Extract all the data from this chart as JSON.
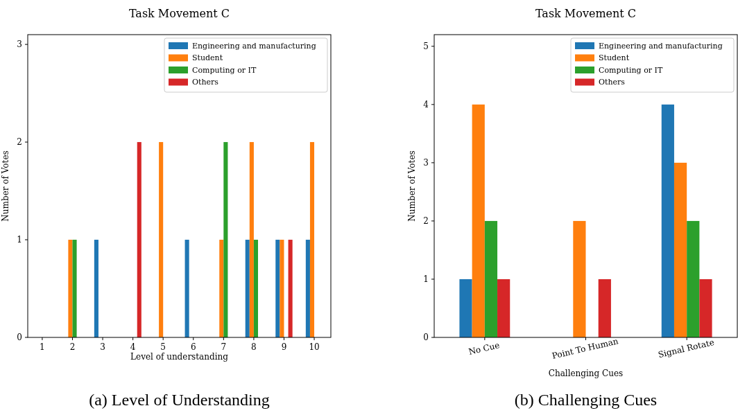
{
  "chart_data": [
    {
      "type": "bar",
      "title": "Task Movement C",
      "xlabel": "Level of understanding",
      "ylabel": "Number of Votes",
      "x": [
        1,
        2,
        3,
        4,
        5,
        6,
        7,
        8,
        9,
        10
      ],
      "xlim": [
        0.52,
        10.55
      ],
      "xticks": [
        1,
        2,
        3,
        4,
        5,
        6,
        7,
        8,
        9,
        10
      ],
      "ylim": [
        0,
        3.1
      ],
      "yticks": [
        0,
        1,
        2,
        3
      ],
      "legend": "top right",
      "annotations": [
        "(a) Level of Understanding"
      ],
      "series": [
        {
          "name": "Engineering and manufacturing",
          "color": "#1f77b4",
          "values": [
            0,
            0,
            1,
            0,
            0,
            1,
            0,
            1,
            1,
            1
          ]
        },
        {
          "name": "Student",
          "color": "#ff7f0e",
          "values": [
            0,
            1,
            0,
            0,
            2,
            0,
            1,
            2,
            1,
            2
          ]
        },
        {
          "name": "Computing or IT",
          "color": "#2ca02c",
          "values": [
            0,
            1,
            0,
            0,
            0,
            0,
            2,
            1,
            0,
            0
          ]
        },
        {
          "name": "Others",
          "color": "#d62728",
          "values": [
            0,
            0,
            0,
            2,
            0,
            0,
            0,
            0,
            1,
            0
          ]
        }
      ]
    },
    {
      "type": "bar",
      "title": "Task Movement C",
      "xlabel": "Challenging Cues",
      "ylabel": "Number of Votes",
      "categories": [
        "No Cue",
        "Point To Human",
        "Signal Rotate"
      ],
      "ylim": [
        0,
        5.2
      ],
      "yticks": [
        0,
        1,
        2,
        3,
        4,
        5
      ],
      "legend": "top right",
      "annotations": [
        "(b) Challenging Cues"
      ],
      "series": [
        {
          "name": "Engineering and manufacturing",
          "color": "#1f77b4",
          "values": [
            1,
            0,
            4
          ]
        },
        {
          "name": "Student",
          "color": "#ff7f0e",
          "values": [
            4,
            2,
            3
          ]
        },
        {
          "name": "Computing or IT",
          "color": "#2ca02c",
          "values": [
            2,
            0,
            2
          ]
        },
        {
          "name": "Others",
          "color": "#d62728",
          "values": [
            1,
            1,
            1
          ]
        }
      ]
    }
  ]
}
